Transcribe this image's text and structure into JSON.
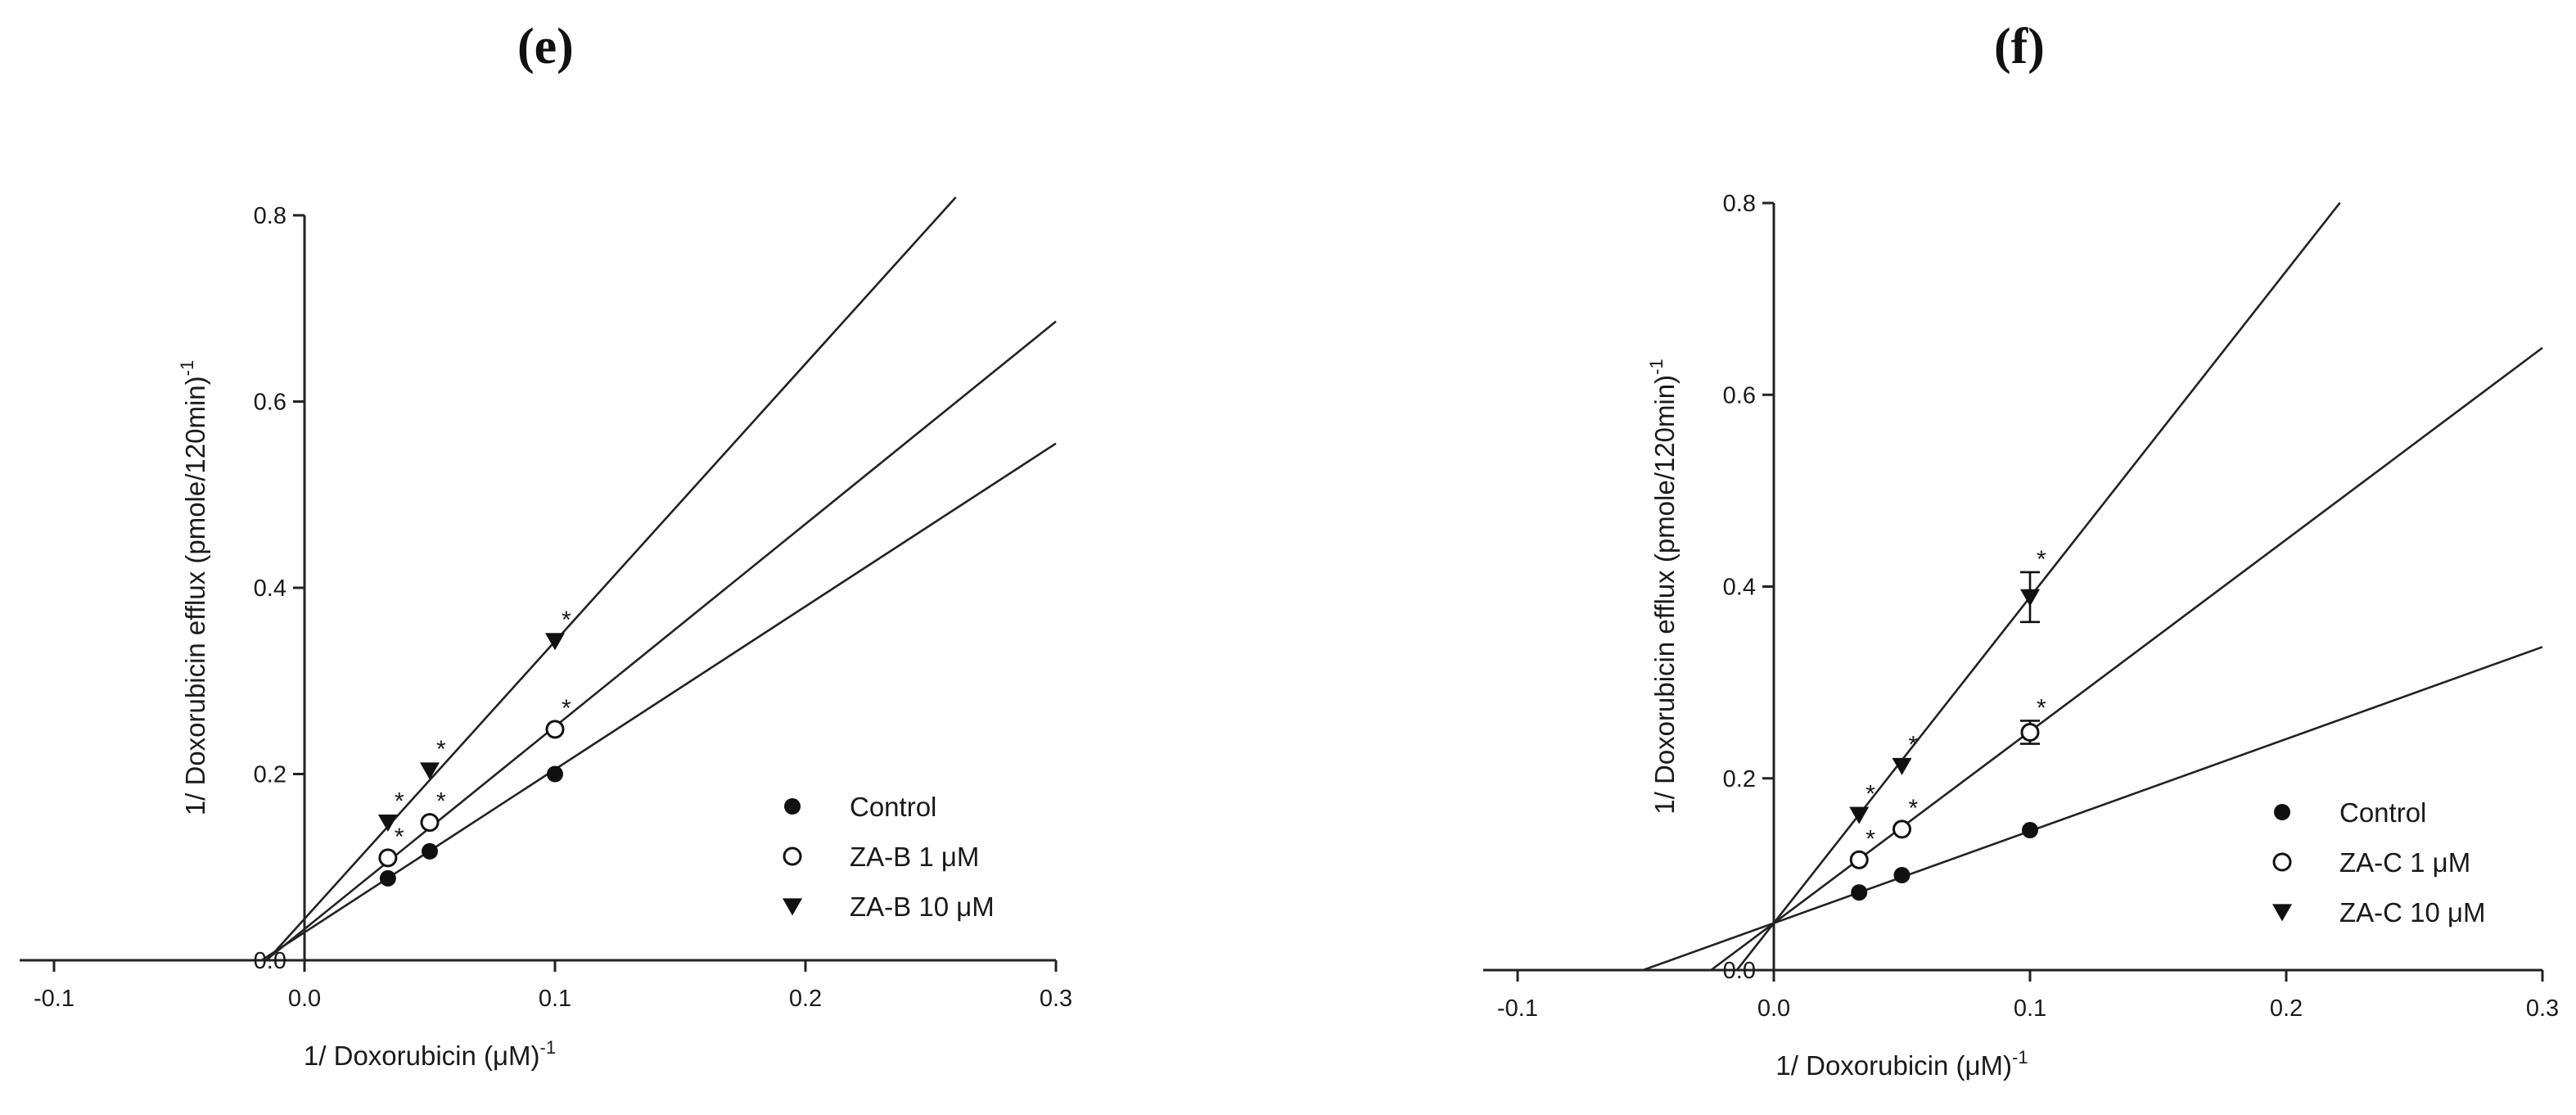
{
  "panels": {
    "e": {
      "label": "(e)"
    },
    "f": {
      "label": "(f)"
    }
  },
  "chart_data": [
    {
      "type": "scatter",
      "title": "",
      "xlabel": "1/ Doxorubicin (μM)",
      "xlabel_sup": "-1",
      "ylabel": "1/ Doxorubicin efflux (pmole/120min)",
      "ylabel_sup": "-1",
      "xlim": [
        -0.12,
        0.3
      ],
      "ylim": [
        0,
        0.8
      ],
      "xticks": [
        -0.1,
        0.0,
        0.1,
        0.2,
        0.3
      ],
      "yticks": [
        0.0,
        0.2,
        0.4,
        0.6,
        0.8
      ],
      "xtick_labels": [
        "-0.1",
        "0.0",
        "0.1",
        "0.2",
        "0.3"
      ],
      "ytick_labels": [
        "0.0",
        "0.2",
        "0.4",
        "0.6",
        "0.8"
      ],
      "legend_position": "bottom-right",
      "series": [
        {
          "name": "Control",
          "marker": "filled-circle",
          "x": [
            0.0333,
            0.05,
            0.1
          ],
          "y": [
            0.088,
            0.117,
            0.2
          ],
          "significant": [
            false,
            false,
            false
          ],
          "fit_line": {
            "slope": 1.75,
            "intercept": 0.03,
            "x_range": [
              -0.0171,
              0.3
            ]
          }
        },
        {
          "name": "ZA-B 1 μM",
          "marker": "open-circle",
          "x": [
            0.0333,
            0.05,
            0.1
          ],
          "y": [
            0.11,
            0.148,
            0.248
          ],
          "significant": [
            true,
            true,
            true
          ],
          "fit_line": {
            "slope": 2.175,
            "intercept": 0.0335,
            "x_range": [
              -0.0154,
              0.3
            ]
          }
        },
        {
          "name": "ZA-B 10 μM",
          "marker": "filled-triangle-down",
          "x": [
            0.0333,
            0.05,
            0.1
          ],
          "y": [
            0.148,
            0.204,
            0.343
          ],
          "significant": [
            true,
            true,
            true
          ],
          "fit_line": {
            "slope": 2.98,
            "intercept": 0.0445,
            "x_range": [
              -0.0149,
              0.26
            ]
          }
        }
      ]
    },
    {
      "type": "scatter",
      "title": "",
      "xlabel": "1/ Doxorubicin (μM)",
      "xlabel_sup": "-1",
      "ylabel": "1/ Doxorubicin efflux (pmole/120min)",
      "ylabel_sup": "-1",
      "xlim": [
        -0.12,
        0.3
      ],
      "ylim": [
        0,
        0.8
      ],
      "xticks": [
        -0.1,
        0.0,
        0.1,
        0.2,
        0.3
      ],
      "yticks": [
        0.0,
        0.2,
        0.4,
        0.6,
        0.8
      ],
      "xtick_labels": [
        "-0.1",
        "0.0",
        "0.1",
        "0.2",
        "0.3"
      ],
      "ytick_labels": [
        "0.0",
        "0.2",
        "0.4",
        "0.6",
        "0.8"
      ],
      "legend_position": "bottom-right",
      "series": [
        {
          "name": "Control",
          "marker": "filled-circle",
          "x": [
            0.0333,
            0.05,
            0.1
          ],
          "y": [
            0.081,
            0.099,
            0.146
          ],
          "significant": [
            false,
            false,
            false
          ],
          "fit_line": {
            "slope": 0.96,
            "intercept": 0.049,
            "x_range": [
              -0.051,
              0.3
            ]
          }
        },
        {
          "name": "ZA-C 1 μM",
          "marker": "open-circle",
          "x": [
            0.0333,
            0.05,
            0.1
          ],
          "y": [
            0.115,
            0.147,
            0.248
          ],
          "significant": [
            true,
            true,
            true
          ],
          "error": [
            0.0,
            0.0,
            0.012
          ],
          "fit_line": {
            "slope": 2.0,
            "intercept": 0.049,
            "x_range": [
              -0.0245,
              0.3
            ]
          }
        },
        {
          "name": "ZA-C 10 μM",
          "marker": "filled-triangle-down",
          "x": [
            0.0333,
            0.05,
            0.1
          ],
          "y": [
            0.162,
            0.213,
            0.389
          ],
          "significant": [
            true,
            true,
            true
          ],
          "error": [
            0.0,
            0.0,
            0.026
          ],
          "fit_line": {
            "slope": 3.4,
            "intercept": 0.049,
            "x_range": [
              -0.0144,
              0.221
            ]
          }
        }
      ]
    }
  ]
}
